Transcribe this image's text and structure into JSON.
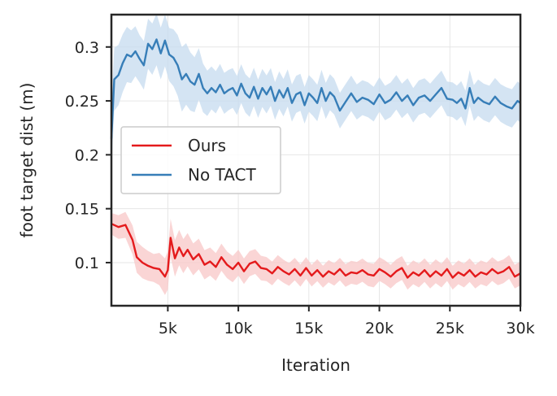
{
  "chart_data": {
    "type": "line",
    "title": "",
    "xlabel": "Iteration",
    "ylabel": "foot target dist (m)",
    "xlim": [
      1000,
      30000
    ],
    "ylim": [
      0.06,
      0.33
    ],
    "grid": true,
    "legend_position": "center-left",
    "x_ticks": [
      {
        "value": 5000,
        "label": "5k"
      },
      {
        "value": 10000,
        "label": "10k"
      },
      {
        "value": 15000,
        "label": "15k"
      },
      {
        "value": 20000,
        "label": "20k"
      },
      {
        "value": 25000,
        "label": "25k"
      },
      {
        "value": 30000,
        "label": "30k"
      }
    ],
    "y_ticks": [
      {
        "value": 0.1,
        "label": "0.1"
      },
      {
        "value": 0.15,
        "label": "0.15"
      },
      {
        "value": 0.2,
        "label": "0.2"
      },
      {
        "value": 0.25,
        "label": "0.25"
      },
      {
        "value": 0.3,
        "label": "0.3"
      }
    ],
    "series": [
      {
        "name": "Ours",
        "color": "#e41a1c",
        "band_color": "#f8c7c7",
        "points": [
          [
            1000,
            0.136
          ],
          [
            1500,
            0.133
          ],
          [
            2000,
            0.135
          ],
          [
            2500,
            0.121
          ],
          [
            2800,
            0.105
          ],
          [
            3200,
            0.1
          ],
          [
            3600,
            0.097
          ],
          [
            4000,
            0.095
          ],
          [
            4400,
            0.094
          ],
          [
            4800,
            0.087
          ],
          [
            5000,
            0.093
          ],
          [
            5200,
            0.123
          ],
          [
            5500,
            0.104
          ],
          [
            5800,
            0.114
          ],
          [
            6100,
            0.106
          ],
          [
            6400,
            0.112
          ],
          [
            6800,
            0.103
          ],
          [
            7200,
            0.108
          ],
          [
            7600,
            0.098
          ],
          [
            8000,
            0.101
          ],
          [
            8400,
            0.096
          ],
          [
            8800,
            0.105
          ],
          [
            9200,
            0.098
          ],
          [
            9600,
            0.094
          ],
          [
            10000,
            0.1
          ],
          [
            10400,
            0.092
          ],
          [
            10800,
            0.099
          ],
          [
            11200,
            0.101
          ],
          [
            11600,
            0.095
          ],
          [
            12000,
            0.094
          ],
          [
            12400,
            0.09
          ],
          [
            12800,
            0.096
          ],
          [
            13200,
            0.092
          ],
          [
            13600,
            0.089
          ],
          [
            14000,
            0.094
          ],
          [
            14400,
            0.088
          ],
          [
            14800,
            0.095
          ],
          [
            15200,
            0.088
          ],
          [
            15600,
            0.093
          ],
          [
            16000,
            0.087
          ],
          [
            16400,
            0.092
          ],
          [
            16800,
            0.089
          ],
          [
            17200,
            0.094
          ],
          [
            17600,
            0.088
          ],
          [
            18000,
            0.091
          ],
          [
            18400,
            0.09
          ],
          [
            18800,
            0.093
          ],
          [
            19200,
            0.089
          ],
          [
            19600,
            0.088
          ],
          [
            20000,
            0.094
          ],
          [
            20400,
            0.091
          ],
          [
            20800,
            0.087
          ],
          [
            21200,
            0.092
          ],
          [
            21600,
            0.095
          ],
          [
            22000,
            0.086
          ],
          [
            22400,
            0.091
          ],
          [
            22800,
            0.088
          ],
          [
            23200,
            0.093
          ],
          [
            23600,
            0.087
          ],
          [
            24000,
            0.092
          ],
          [
            24400,
            0.088
          ],
          [
            24800,
            0.094
          ],
          [
            25200,
            0.086
          ],
          [
            25600,
            0.091
          ],
          [
            26000,
            0.088
          ],
          [
            26400,
            0.093
          ],
          [
            26800,
            0.087
          ],
          [
            27200,
            0.091
          ],
          [
            27600,
            0.089
          ],
          [
            28000,
            0.094
          ],
          [
            28400,
            0.09
          ],
          [
            28800,
            0.092
          ],
          [
            29200,
            0.096
          ],
          [
            29600,
            0.087
          ],
          [
            30000,
            0.09
          ]
        ],
        "band_halfwidth": [
          [
            1000,
            0.01
          ],
          [
            2000,
            0.012
          ],
          [
            3000,
            0.015
          ],
          [
            4000,
            0.013
          ],
          [
            5000,
            0.018
          ],
          [
            6000,
            0.016
          ],
          [
            8000,
            0.013
          ],
          [
            10000,
            0.012
          ],
          [
            15000,
            0.01
          ],
          [
            20000,
            0.011
          ],
          [
            25000,
            0.011
          ],
          [
            30000,
            0.011
          ]
        ]
      },
      {
        "name": "No TACT",
        "color": "#377eb8",
        "band_color": "#c6dbef",
        "points": [
          [
            1000,
            0.215
          ],
          [
            1200,
            0.27
          ],
          [
            1500,
            0.274
          ],
          [
            1800,
            0.285
          ],
          [
            2100,
            0.293
          ],
          [
            2400,
            0.291
          ],
          [
            2700,
            0.296
          ],
          [
            3000,
            0.289
          ],
          [
            3300,
            0.283
          ],
          [
            3600,
            0.303
          ],
          [
            3900,
            0.298
          ],
          [
            4200,
            0.307
          ],
          [
            4500,
            0.294
          ],
          [
            4800,
            0.306
          ],
          [
            5100,
            0.293
          ],
          [
            5400,
            0.29
          ],
          [
            5700,
            0.283
          ],
          [
            6000,
            0.27
          ],
          [
            6300,
            0.275
          ],
          [
            6600,
            0.268
          ],
          [
            6900,
            0.265
          ],
          [
            7200,
            0.275
          ],
          [
            7500,
            0.262
          ],
          [
            7800,
            0.257
          ],
          [
            8100,
            0.262
          ],
          [
            8400,
            0.258
          ],
          [
            8700,
            0.265
          ],
          [
            9000,
            0.257
          ],
          [
            9300,
            0.26
          ],
          [
            9600,
            0.262
          ],
          [
            9900,
            0.255
          ],
          [
            10200,
            0.266
          ],
          [
            10500,
            0.257
          ],
          [
            10800,
            0.253
          ],
          [
            11100,
            0.263
          ],
          [
            11400,
            0.252
          ],
          [
            11700,
            0.262
          ],
          [
            12000,
            0.256
          ],
          [
            12300,
            0.263
          ],
          [
            12600,
            0.25
          ],
          [
            12900,
            0.26
          ],
          [
            13200,
            0.253
          ],
          [
            13500,
            0.262
          ],
          [
            13800,
            0.248
          ],
          [
            14100,
            0.256
          ],
          [
            14400,
            0.258
          ],
          [
            14700,
            0.246
          ],
          [
            15000,
            0.257
          ],
          [
            15300,
            0.253
          ],
          [
            15600,
            0.248
          ],
          [
            15900,
            0.262
          ],
          [
            16200,
            0.25
          ],
          [
            16500,
            0.258
          ],
          [
            16800,
            0.254
          ],
          [
            17200,
            0.241
          ],
          [
            17600,
            0.249
          ],
          [
            18000,
            0.257
          ],
          [
            18400,
            0.249
          ],
          [
            18800,
            0.253
          ],
          [
            19200,
            0.251
          ],
          [
            19600,
            0.247
          ],
          [
            20000,
            0.256
          ],
          [
            20400,
            0.248
          ],
          [
            20800,
            0.251
          ],
          [
            21200,
            0.258
          ],
          [
            21600,
            0.25
          ],
          [
            22000,
            0.255
          ],
          [
            22400,
            0.246
          ],
          [
            22800,
            0.253
          ],
          [
            23200,
            0.255
          ],
          [
            23600,
            0.25
          ],
          [
            24000,
            0.256
          ],
          [
            24400,
            0.262
          ],
          [
            24800,
            0.252
          ],
          [
            25200,
            0.251
          ],
          [
            25500,
            0.248
          ],
          [
            25800,
            0.252
          ],
          [
            26100,
            0.243
          ],
          [
            26400,
            0.262
          ],
          [
            26700,
            0.248
          ],
          [
            27000,
            0.253
          ],
          [
            27400,
            0.249
          ],
          [
            27800,
            0.247
          ],
          [
            28200,
            0.254
          ],
          [
            28600,
            0.248
          ],
          [
            29000,
            0.245
          ],
          [
            29400,
            0.243
          ],
          [
            29800,
            0.25
          ],
          [
            30000,
            0.248
          ]
        ],
        "band_halfwidth": [
          [
            1000,
            0.03
          ],
          [
            2000,
            0.026
          ],
          [
            3000,
            0.022
          ],
          [
            4000,
            0.024
          ],
          [
            5000,
            0.024
          ],
          [
            6000,
            0.03
          ],
          [
            8000,
            0.02
          ],
          [
            10000,
            0.018
          ],
          [
            15000,
            0.017
          ],
          [
            20000,
            0.016
          ],
          [
            25000,
            0.016
          ],
          [
            30000,
            0.018
          ]
        ]
      }
    ]
  }
}
